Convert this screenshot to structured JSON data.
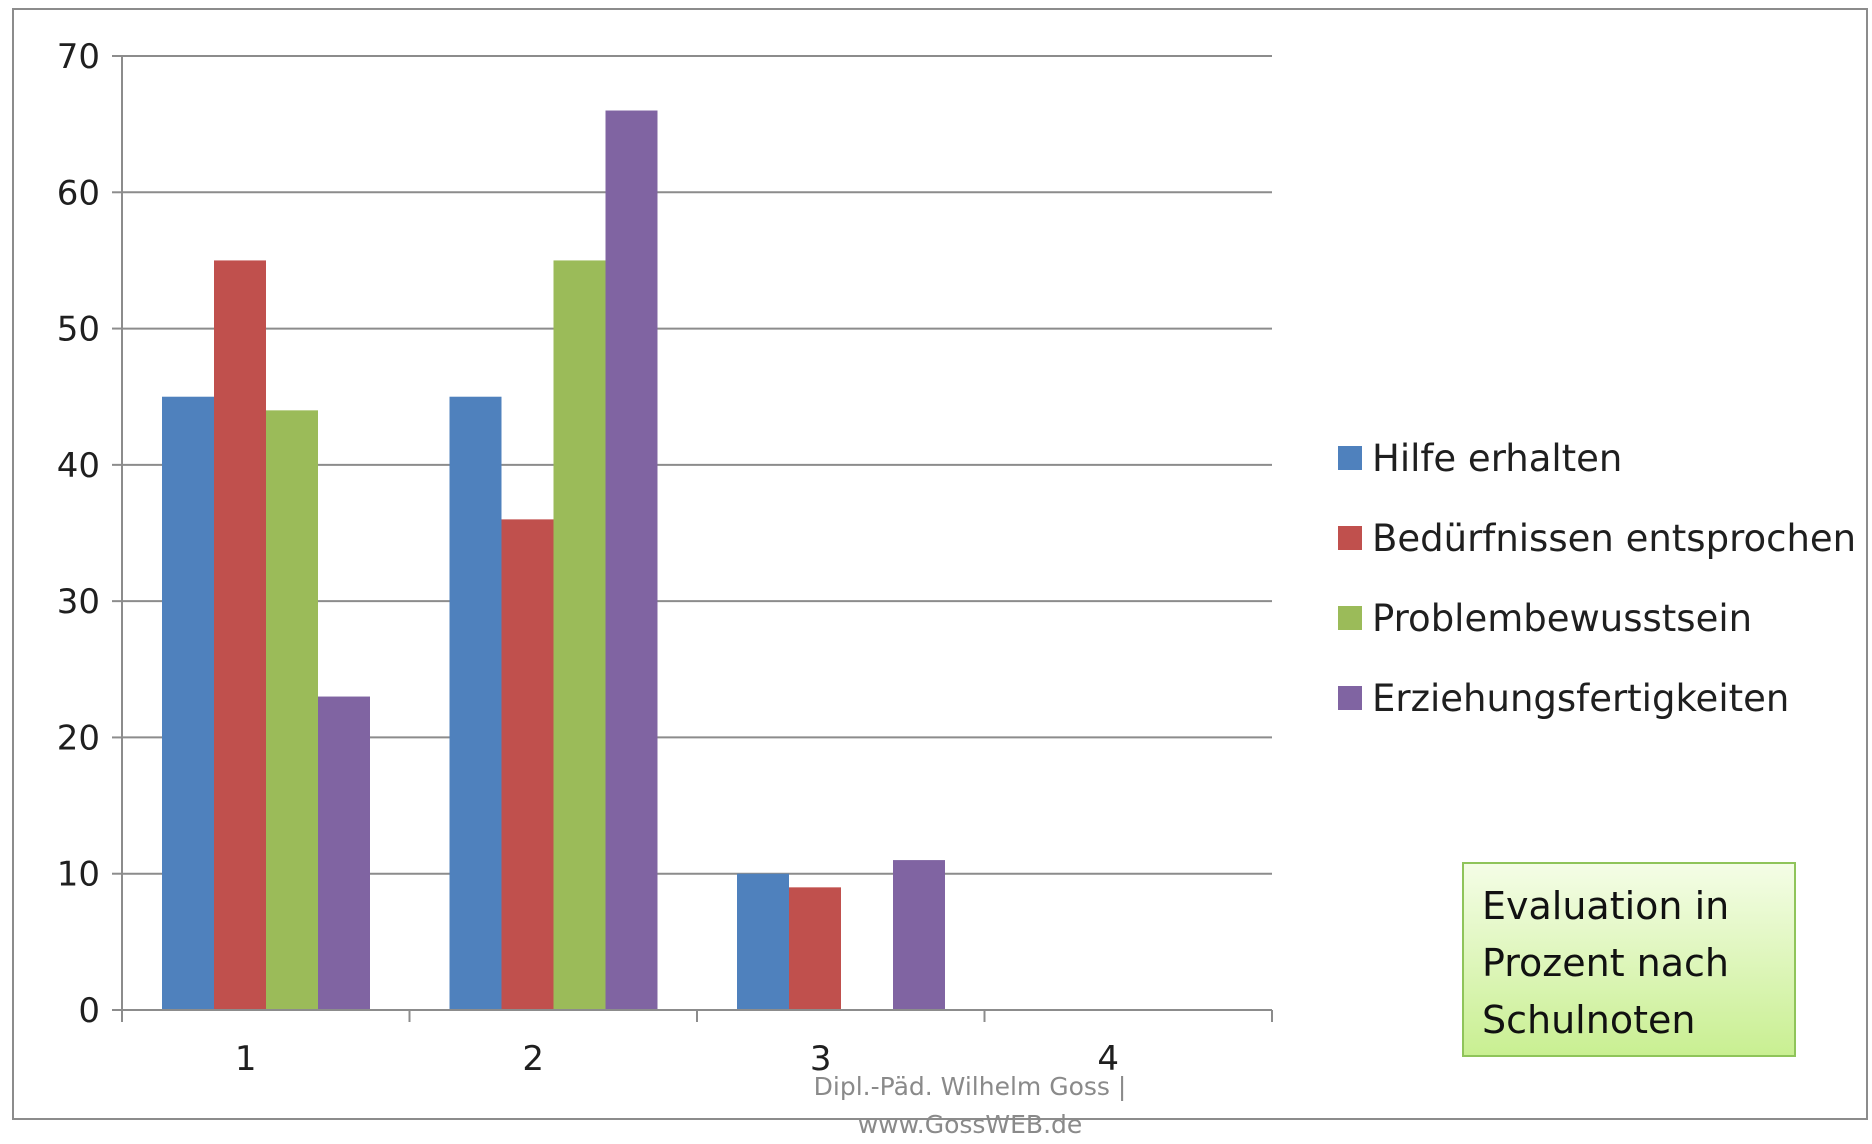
{
  "chart_data": {
    "type": "bar",
    "categories": [
      "1",
      "2",
      "3",
      "4"
    ],
    "series": [
      {
        "name": "Hilfe erhalten",
        "color": "#4f81bd",
        "values": [
          45,
          45,
          10,
          0
        ]
      },
      {
        "name": "Bedürfnissen entsprochen",
        "color": "#c0504d",
        "values": [
          55,
          36,
          9,
          0
        ]
      },
      {
        "name": "Problembewusstsein",
        "color": "#9bbb59",
        "values": [
          44,
          55,
          0,
          0
        ]
      },
      {
        "name": "Erziehungsfertigkeiten",
        "color": "#8064a2",
        "values": [
          23,
          66,
          11,
          0
        ]
      }
    ],
    "ylim": [
      0,
      70
    ],
    "yticks": [
      0,
      10,
      20,
      30,
      40,
      50,
      60,
      70
    ],
    "grid": true,
    "legend": "right"
  },
  "note": {
    "lines": [
      "Evaluation in",
      "Prozent nach",
      "Schulnoten"
    ]
  },
  "footer": {
    "line1": "Dipl.-Päd. Wilhelm Goss |",
    "line2": "www.GossWEB.de"
  }
}
